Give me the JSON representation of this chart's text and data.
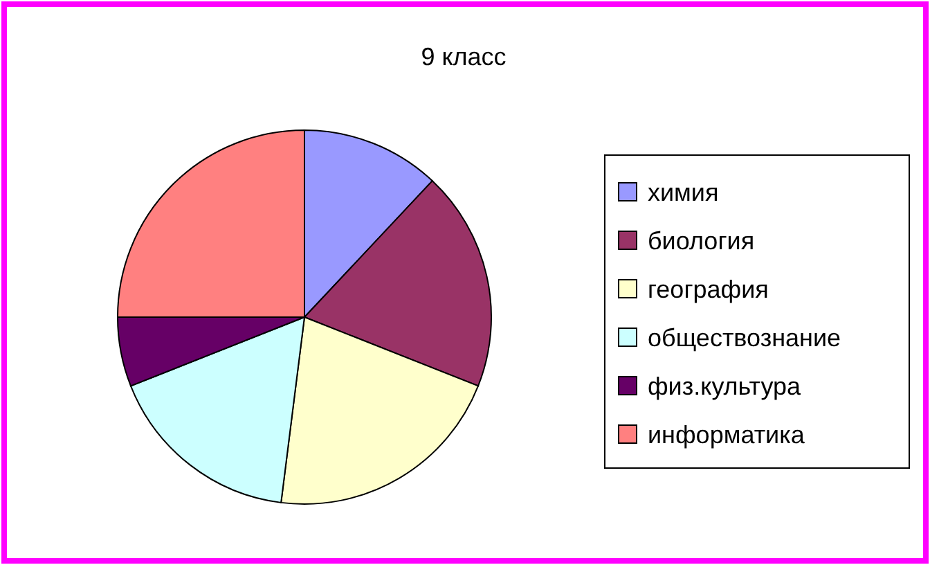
{
  "chart_data": {
    "type": "pie",
    "title": "9 класс",
    "categories": [
      "химия",
      "биология",
      "география",
      "обществознание",
      "физ.культура",
      "информатика"
    ],
    "values": [
      12,
      19,
      21,
      17,
      6,
      25
    ],
    "colors": [
      "#9999ff",
      "#993366",
      "#ffffcc",
      "#ccffff",
      "#660066",
      "#ff8080"
    ],
    "legend": "right"
  }
}
